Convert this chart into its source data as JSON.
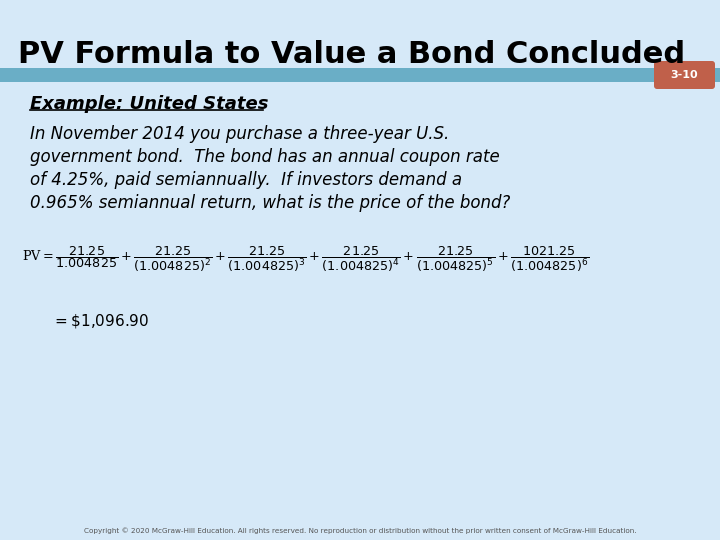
{
  "title": "PV Formula to Value a Bond Concluded",
  "slide_number": "3-10",
  "bg_color": "#d6e9f8",
  "title_color": "#000000",
  "bar_color": "#6aaec6",
  "slide_num_bg": "#c0604a",
  "slide_num_color": "#ffffff",
  "example_heading": "Example: United States",
  "body_text_line1": "In November 2014 you purchase a three-year U.S.",
  "body_text_line2": "government bond.  The bond has an annual coupon rate",
  "body_text_line3": "of 4.25%, paid semiannually.  If investors demand a",
  "body_text_line4": "0.965% semiannual return, what is the price of the bond?",
  "copyright": "Copyright © 2020 McGraw-Hill Education. All rights reserved. No reproduction or distribution without the prior written consent of McGraw-Hill Education."
}
